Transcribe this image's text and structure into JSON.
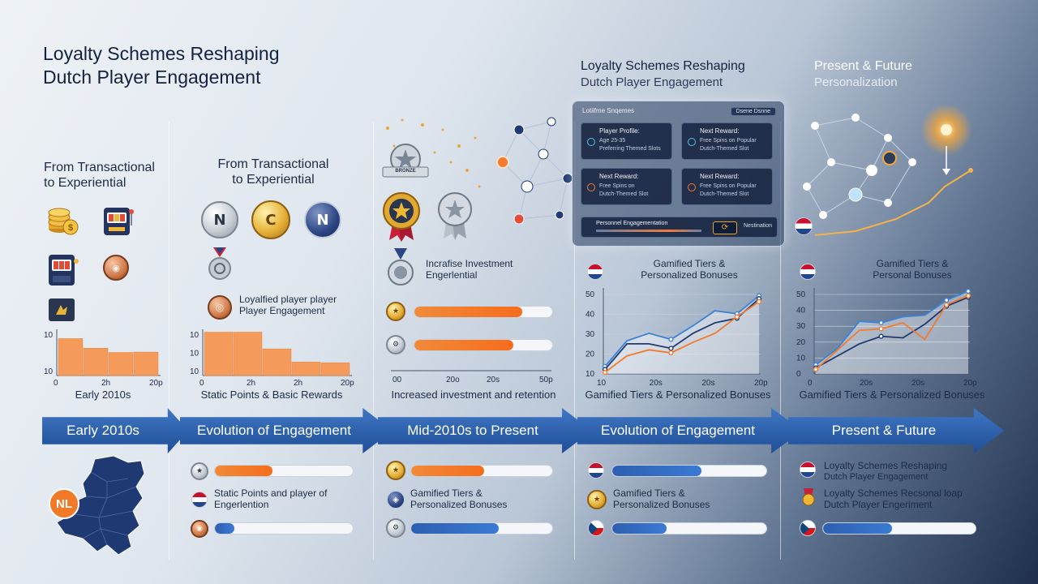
{
  "header": {
    "main_title_line1": "Loyalty Schemes Reshaping",
    "main_title_line2": "Dutch Player Engagement",
    "mid_title_line1": "Loyalty Schemes Reshaping",
    "mid_title_line2": "Dutch Player Engagement",
    "future_title_line1": "Present & Future",
    "future_title_line2": "Personalization"
  },
  "columns": [
    {
      "subtitle_line1": "From Transactional",
      "subtitle_line2": "to Experiential",
      "caption": "Early 2010s",
      "icons": [
        "coin-stack-icon",
        "slot-machine-icon",
        "slot-machine-icon",
        "bronze-medal-icon",
        "gold-card-icon"
      ]
    },
    {
      "subtitle_line1": "From Transactional",
      "subtitle_line2": "to Experiential",
      "medal_letters": [
        "N",
        "C",
        "N"
      ],
      "note_line1": "Loyalfied player player",
      "note_line2": "Player Engagement",
      "caption": "Static Points & Basic Rewards",
      "bottom_text_line1": "Static Points and player of",
      "bottom_text_line2": "Engerlention"
    },
    {
      "badge_text": "BRONZE",
      "note_line1": "Incrafise Investment",
      "note_line2": "Engerlential",
      "caption": "Increased investment and retention",
      "bottom_text_line1": "Gamified Tiers &",
      "bottom_text_line2": "Personalized Bonuses"
    },
    {
      "chart_title_line1": "Gamified Tiers &",
      "chart_title_line2": "Personalized Bonuses",
      "caption": "Gamified Tiers & Personalized Bonuses",
      "bottom_text_line1": "Gamified Tiers &",
      "bottom_text_line2": "Personalized Bonuses"
    },
    {
      "chart_title_line1": "Gamified Tiers &",
      "chart_title_line2": "Personal Bonuses",
      "caption": "Gamified Tiers & Personalized Bonuses",
      "bottom_text_1_line1": "Loyalty Schemes Reshaping",
      "bottom_text_1_line2": "Dutch Player Engagement",
      "bottom_text_2_line1": "Loyalty Schemes Recsonal loap",
      "bottom_text_2_line2": "Dutch Player Engeriment"
    }
  ],
  "timeline": [
    "Early 2010s",
    "Evolution of Engagement",
    "Mid-2010s to Present",
    "Evolution of Engagement",
    "Present & Future"
  ],
  "nl_badge": "NL",
  "dashboard": {
    "title": "Lotiifme Snqemes",
    "pill": "Dsene Dsnne",
    "tiles": [
      {
        "title": "Player Profile:",
        "line1": "Age 25-35",
        "line2": "Preferring Themed Slots"
      },
      {
        "title": "Next Reward:",
        "line1": "Free Spins on Popular",
        "line2": "Dutch-Themed Slot"
      },
      {
        "title": "Next Reward:",
        "line1": "Free Spins on",
        "line2": "Dutch-Themed Slot"
      },
      {
        "title": "Next Reward:",
        "line1": "Free Spins on Popular",
        "line2": "Dutch-Themed Slot"
      }
    ],
    "bottom_title": "Personnel Engagementation",
    "bottom_button": "Nestination"
  },
  "progress": {
    "col3_top": [
      0.78,
      0.72
    ],
    "col2_bottom": [
      0.42,
      0.14
    ],
    "col3_bottom": [
      0.52,
      0.62
    ],
    "col4_bottom": [
      0.58,
      0.35
    ],
    "col5_bottom": [
      0.45
    ]
  },
  "colors": {
    "orange": "#f37a2e",
    "blue": "#2f62b4",
    "navy": "#1f3a72"
  },
  "chart_data": [
    {
      "type": "bar",
      "values": [
        10.4,
        7.7,
        6.5,
        6.6
      ],
      "y_ticks": [
        "10",
        "10"
      ],
      "x_ticks": [
        "0",
        "2h",
        "20p"
      ],
      "ylim": [
        0,
        13
      ]
    },
    {
      "type": "bar",
      "values": [
        12.2,
        12.2,
        7.5,
        3.8,
        3.6
      ],
      "y_ticks": [
        "10",
        "10",
        "10"
      ],
      "x_ticks": [
        "0",
        "2h",
        "2h",
        "20p"
      ],
      "ylim": [
        0,
        13
      ]
    },
    {
      "type": "line",
      "series": [
        {
          "values": [
            5,
            22,
            27,
            23,
            32,
            42,
            40,
            52
          ]
        },
        {
          "values": [
            3,
            20,
            20,
            17,
            27,
            34,
            37,
            50
          ]
        },
        {
          "values": [
            1,
            12,
            16,
            14,
            21,
            27,
            38,
            48
          ]
        }
      ],
      "y_ticks": [
        "50",
        "40",
        "30",
        "20",
        "10"
      ],
      "x_ticks": [
        "10",
        "20s",
        "20s",
        "20p"
      ],
      "ylim": [
        0,
        55
      ]
    },
    {
      "type": "line",
      "series": [
        {
          "values": [
            6,
            17,
            35,
            34,
            38,
            39,
            49,
            55
          ]
        },
        {
          "values": [
            4,
            12,
            20,
            25,
            24,
            33,
            45,
            51
          ]
        },
        {
          "values": [
            3,
            16,
            29,
            30,
            34,
            23,
            46,
            52
          ]
        }
      ],
      "y_ticks": [
        "50",
        "40",
        "30",
        "20",
        "10",
        "0"
      ],
      "x_ticks": [
        "0",
        "20s",
        "20s",
        "20p"
      ],
      "ylim": [
        0,
        55
      ]
    }
  ]
}
